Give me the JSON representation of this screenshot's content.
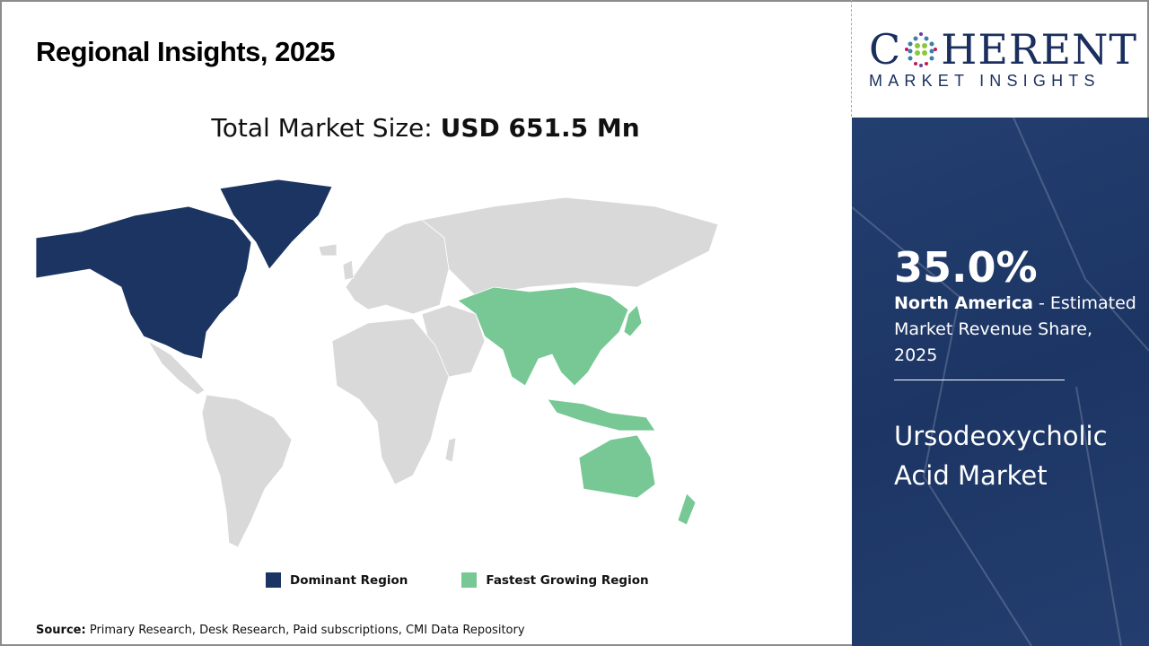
{
  "title": "Regional Insights, 2025",
  "market_size": {
    "label": "Total Market Size:",
    "value": "USD 651.5 Mn"
  },
  "map": {
    "colors": {
      "dominant": "#1b3461",
      "fastest": "#77c895",
      "other": "#d9d9d9"
    },
    "dominant_region": "North America",
    "fastest_region": "Asia Pacific"
  },
  "legend": [
    {
      "label": "Dominant Region",
      "color": "#1b3461"
    },
    {
      "label": "Fastest Growing Region",
      "color": "#77c895"
    }
  ],
  "source": {
    "label": "Source:",
    "text": "Primary Research, Desk Research, Paid subscriptions, CMI Data Repository"
  },
  "logo": {
    "line1_a": "C",
    "line1_b": "HERENT",
    "line2": "MARKET INSIGHTS"
  },
  "panel": {
    "share": "35.0%",
    "region": "North America",
    "desc": " - Estimated Market Revenue Share, 2025",
    "market_name": "Ursodeoxycholic Acid Market"
  }
}
